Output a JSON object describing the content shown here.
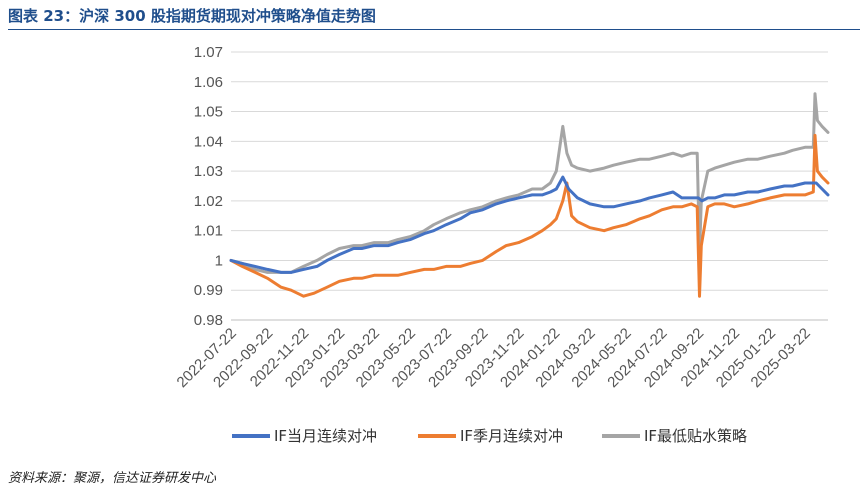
{
  "figure": {
    "title": "图表 23：沪深 300 股指期货期现对冲策略净值走势图",
    "source": "资料来源：聚源，信达证券研发中心"
  },
  "chart_data": {
    "type": "line",
    "ylim": [
      0.98,
      1.07
    ],
    "yticks": [
      "1.07",
      "1.06",
      "1.05",
      "1.04",
      "1.03",
      "1.02",
      "1.01",
      "1",
      "0.99",
      "0.98"
    ],
    "xticks": [
      "2022-07-22",
      "2022-09-22",
      "2022-11-22",
      "2023-01-22",
      "2023-03-22",
      "2023-05-22",
      "2023-07-22",
      "2023-09-22",
      "2023-11-22",
      "2024-01-22",
      "2024-03-22",
      "2024-05-22",
      "2024-07-22",
      "2024-09-22",
      "2024-11-22",
      "2025-01-22",
      "2025-03-22"
    ],
    "x_range": [
      "2022-07-22",
      "2025-04-30"
    ],
    "grid": "horizontal",
    "legend_position": "bottom",
    "series": [
      {
        "name": "IF当月连续对冲",
        "color": "#4472C4",
        "points": [
          [
            "2022-07-22",
            1.0
          ],
          [
            "2022-08-10",
            0.999
          ],
          [
            "2022-09-01",
            0.998
          ],
          [
            "2022-09-22",
            0.997
          ],
          [
            "2022-10-15",
            0.996
          ],
          [
            "2022-11-01",
            0.996
          ],
          [
            "2022-11-22",
            0.997
          ],
          [
            "2022-12-15",
            0.998
          ],
          [
            "2023-01-01",
            1.0
          ],
          [
            "2023-01-22",
            1.002
          ],
          [
            "2023-02-15",
            1.004
          ],
          [
            "2023-03-01",
            1.004
          ],
          [
            "2023-03-22",
            1.005
          ],
          [
            "2023-04-15",
            1.005
          ],
          [
            "2023-05-01",
            1.006
          ],
          [
            "2023-05-22",
            1.007
          ],
          [
            "2023-06-15",
            1.009
          ],
          [
            "2023-07-01",
            1.01
          ],
          [
            "2023-07-22",
            1.012
          ],
          [
            "2023-08-15",
            1.014
          ],
          [
            "2023-09-01",
            1.016
          ],
          [
            "2023-09-22",
            1.017
          ],
          [
            "2023-10-15",
            1.019
          ],
          [
            "2023-11-01",
            1.02
          ],
          [
            "2023-11-22",
            1.021
          ],
          [
            "2023-12-15",
            1.022
          ],
          [
            "2024-01-01",
            1.022
          ],
          [
            "2024-01-15",
            1.023
          ],
          [
            "2024-01-25",
            1.024
          ],
          [
            "2024-02-05",
            1.028
          ],
          [
            "2024-02-15",
            1.024
          ],
          [
            "2024-03-01",
            1.021
          ],
          [
            "2024-03-22",
            1.019
          ],
          [
            "2024-04-15",
            1.018
          ],
          [
            "2024-05-01",
            1.018
          ],
          [
            "2024-05-22",
            1.019
          ],
          [
            "2024-06-15",
            1.02
          ],
          [
            "2024-07-01",
            1.021
          ],
          [
            "2024-07-22",
            1.022
          ],
          [
            "2024-08-10",
            1.023
          ],
          [
            "2024-08-25",
            1.021
          ],
          [
            "2024-09-10",
            1.021
          ],
          [
            "2024-09-22",
            1.021
          ],
          [
            "2024-09-28",
            1.02
          ],
          [
            "2024-10-08",
            1.021
          ],
          [
            "2024-10-20",
            1.021
          ],
          [
            "2024-11-05",
            1.022
          ],
          [
            "2024-11-22",
            1.022
          ],
          [
            "2024-12-15",
            1.023
          ],
          [
            "2025-01-01",
            1.023
          ],
          [
            "2025-01-22",
            1.024
          ],
          [
            "2025-02-15",
            1.025
          ],
          [
            "2025-03-01",
            1.025
          ],
          [
            "2025-03-22",
            1.026
          ],
          [
            "2025-04-10",
            1.026
          ],
          [
            "2025-04-20",
            1.024
          ],
          [
            "2025-04-30",
            1.022
          ]
        ]
      },
      {
        "name": "IF季月连续对冲",
        "color": "#ED7D31",
        "points": [
          [
            "2022-07-22",
            1.0
          ],
          [
            "2022-08-10",
            0.998
          ],
          [
            "2022-09-01",
            0.996
          ],
          [
            "2022-09-22",
            0.994
          ],
          [
            "2022-10-15",
            0.991
          ],
          [
            "2022-11-01",
            0.99
          ],
          [
            "2022-11-22",
            0.988
          ],
          [
            "2022-12-10",
            0.989
          ],
          [
            "2023-01-01",
            0.991
          ],
          [
            "2023-01-22",
            0.993
          ],
          [
            "2023-02-15",
            0.994
          ],
          [
            "2023-03-01",
            0.994
          ],
          [
            "2023-03-22",
            0.995
          ],
          [
            "2023-04-15",
            0.995
          ],
          [
            "2023-05-01",
            0.995
          ],
          [
            "2023-05-22",
            0.996
          ],
          [
            "2023-06-15",
            0.997
          ],
          [
            "2023-07-01",
            0.997
          ],
          [
            "2023-07-22",
            0.998
          ],
          [
            "2023-08-15",
            0.998
          ],
          [
            "2023-09-01",
            0.999
          ],
          [
            "2023-09-22",
            1.0
          ],
          [
            "2023-10-15",
            1.003
          ],
          [
            "2023-11-01",
            1.005
          ],
          [
            "2023-11-22",
            1.006
          ],
          [
            "2023-12-15",
            1.008
          ],
          [
            "2024-01-01",
            1.01
          ],
          [
            "2024-01-15",
            1.012
          ],
          [
            "2024-01-25",
            1.014
          ],
          [
            "2024-02-05",
            1.02
          ],
          [
            "2024-02-12",
            1.026
          ],
          [
            "2024-02-20",
            1.015
          ],
          [
            "2024-03-01",
            1.013
          ],
          [
            "2024-03-22",
            1.011
          ],
          [
            "2024-04-15",
            1.01
          ],
          [
            "2024-05-01",
            1.011
          ],
          [
            "2024-05-22",
            1.012
          ],
          [
            "2024-06-15",
            1.014
          ],
          [
            "2024-07-01",
            1.015
          ],
          [
            "2024-07-22",
            1.017
          ],
          [
            "2024-08-10",
            1.018
          ],
          [
            "2024-08-25",
            1.018
          ],
          [
            "2024-09-10",
            1.019
          ],
          [
            "2024-09-20",
            1.018
          ],
          [
            "2024-09-24",
            0.988
          ],
          [
            "2024-09-27",
            1.005
          ],
          [
            "2024-10-08",
            1.018
          ],
          [
            "2024-10-20",
            1.019
          ],
          [
            "2024-11-05",
            1.019
          ],
          [
            "2024-11-22",
            1.018
          ],
          [
            "2024-12-15",
            1.019
          ],
          [
            "2025-01-01",
            1.02
          ],
          [
            "2025-01-22",
            1.021
          ],
          [
            "2025-02-15",
            1.022
          ],
          [
            "2025-03-01",
            1.022
          ],
          [
            "2025-03-22",
            1.022
          ],
          [
            "2025-04-05",
            1.023
          ],
          [
            "2025-04-08",
            1.042
          ],
          [
            "2025-04-12",
            1.03
          ],
          [
            "2025-04-20",
            1.028
          ],
          [
            "2025-04-30",
            1.026
          ]
        ]
      },
      {
        "name": "IF最低贴水策略",
        "color": "#A5A5A5",
        "points": [
          [
            "2022-07-22",
            1.0
          ],
          [
            "2022-08-10",
            0.999
          ],
          [
            "2022-09-01",
            0.997
          ],
          [
            "2022-09-22",
            0.996
          ],
          [
            "2022-10-15",
            0.996
          ],
          [
            "2022-11-01",
            0.996
          ],
          [
            "2022-11-22",
            0.998
          ],
          [
            "2022-12-15",
            1.0
          ],
          [
            "2023-01-01",
            1.002
          ],
          [
            "2023-01-22",
            1.004
          ],
          [
            "2023-02-15",
            1.005
          ],
          [
            "2023-03-01",
            1.005
          ],
          [
            "2023-03-22",
            1.006
          ],
          [
            "2023-04-15",
            1.006
          ],
          [
            "2023-05-01",
            1.007
          ],
          [
            "2023-05-22",
            1.008
          ],
          [
            "2023-06-15",
            1.01
          ],
          [
            "2023-07-01",
            1.012
          ],
          [
            "2023-07-22",
            1.014
          ],
          [
            "2023-08-15",
            1.016
          ],
          [
            "2023-09-01",
            1.017
          ],
          [
            "2023-09-22",
            1.018
          ],
          [
            "2023-10-15",
            1.02
          ],
          [
            "2023-11-01",
            1.021
          ],
          [
            "2023-11-22",
            1.022
          ],
          [
            "2023-12-15",
            1.024
          ],
          [
            "2024-01-01",
            1.024
          ],
          [
            "2024-01-15",
            1.026
          ],
          [
            "2024-01-25",
            1.03
          ],
          [
            "2024-02-05",
            1.045
          ],
          [
            "2024-02-12",
            1.036
          ],
          [
            "2024-02-20",
            1.032
          ],
          [
            "2024-03-01",
            1.031
          ],
          [
            "2024-03-22",
            1.03
          ],
          [
            "2024-04-15",
            1.031
          ],
          [
            "2024-05-01",
            1.032
          ],
          [
            "2024-05-22",
            1.033
          ],
          [
            "2024-06-15",
            1.034
          ],
          [
            "2024-07-01",
            1.034
          ],
          [
            "2024-07-22",
            1.035
          ],
          [
            "2024-08-10",
            1.036
          ],
          [
            "2024-08-25",
            1.035
          ],
          [
            "2024-09-10",
            1.036
          ],
          [
            "2024-09-20",
            1.036
          ],
          [
            "2024-09-24",
            1.002
          ],
          [
            "2024-09-27",
            1.02
          ],
          [
            "2024-10-08",
            1.03
          ],
          [
            "2024-10-20",
            1.031
          ],
          [
            "2024-11-05",
            1.032
          ],
          [
            "2024-11-22",
            1.033
          ],
          [
            "2024-12-15",
            1.034
          ],
          [
            "2025-01-01",
            1.034
          ],
          [
            "2025-01-22",
            1.035
          ],
          [
            "2025-02-15",
            1.036
          ],
          [
            "2025-03-01",
            1.037
          ],
          [
            "2025-03-22",
            1.038
          ],
          [
            "2025-04-05",
            1.038
          ],
          [
            "2025-04-08",
            1.056
          ],
          [
            "2025-04-12",
            1.047
          ],
          [
            "2025-04-20",
            1.045
          ],
          [
            "2025-04-30",
            1.043
          ]
        ]
      }
    ]
  }
}
